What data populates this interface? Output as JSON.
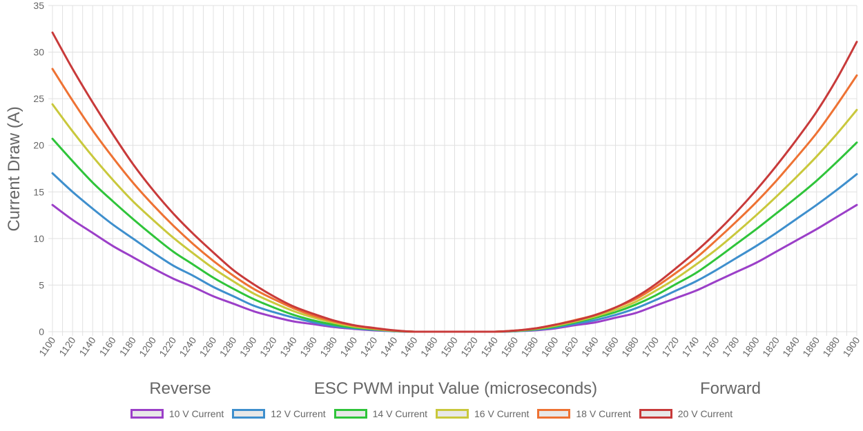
{
  "chart_data": {
    "type": "line",
    "xlabel": "ESC PWM input Value (microseconds)",
    "ylabel": "Current Draw (A)",
    "annotations": {
      "left": "Reverse",
      "right": "Forward"
    },
    "ylim": [
      0,
      35
    ],
    "yticks": [
      0,
      5,
      10,
      15,
      20,
      25,
      30,
      35
    ],
    "xlim": [
      1100,
      1900
    ],
    "xticks": [
      1100,
      1120,
      1140,
      1160,
      1180,
      1200,
      1220,
      1240,
      1260,
      1280,
      1300,
      1320,
      1340,
      1360,
      1380,
      1400,
      1420,
      1440,
      1460,
      1480,
      1500,
      1520,
      1540,
      1560,
      1580,
      1600,
      1620,
      1640,
      1660,
      1680,
      1700,
      1720,
      1740,
      1760,
      1780,
      1800,
      1820,
      1840,
      1860,
      1880,
      1900
    ],
    "grid": true,
    "legend_position": "bottom",
    "x": [
      1100,
      1120,
      1140,
      1160,
      1180,
      1200,
      1220,
      1240,
      1260,
      1280,
      1300,
      1320,
      1340,
      1360,
      1380,
      1400,
      1420,
      1440,
      1460,
      1480,
      1500,
      1520,
      1540,
      1560,
      1580,
      1600,
      1620,
      1640,
      1660,
      1680,
      1700,
      1720,
      1740,
      1760,
      1780,
      1800,
      1820,
      1840,
      1860,
      1880,
      1900
    ],
    "series": [
      {
        "name": "10 V Current",
        "color": "#9b3fc8",
        "values": [
          13.6,
          12.0,
          10.6,
          9.2,
          8.0,
          6.8,
          5.7,
          4.8,
          3.8,
          3.0,
          2.2,
          1.6,
          1.1,
          0.8,
          0.5,
          0.3,
          0.15,
          0.05,
          0.0,
          0.0,
          0.0,
          0.0,
          0.0,
          0.05,
          0.15,
          0.35,
          0.7,
          1.0,
          1.5,
          2.0,
          2.8,
          3.6,
          4.4,
          5.4,
          6.4,
          7.4,
          8.6,
          9.8,
          11.0,
          12.3,
          13.6
        ]
      },
      {
        "name": "12 V Current",
        "color": "#3e8fcd",
        "values": [
          17.0,
          15.0,
          13.2,
          11.5,
          10.0,
          8.5,
          7.1,
          6.0,
          4.8,
          3.8,
          2.8,
          2.1,
          1.5,
          1.0,
          0.6,
          0.35,
          0.2,
          0.05,
          0.0,
          0.0,
          0.0,
          0.0,
          0.0,
          0.05,
          0.2,
          0.45,
          0.85,
          1.25,
          1.8,
          2.5,
          3.4,
          4.4,
          5.4,
          6.6,
          7.9,
          9.2,
          10.6,
          12.1,
          13.6,
          15.2,
          16.9
        ]
      },
      {
        "name": "14 V Current",
        "color": "#2fc43a",
        "values": [
          20.7,
          18.3,
          16.0,
          14.0,
          12.1,
          10.3,
          8.6,
          7.2,
          5.8,
          4.6,
          3.5,
          2.6,
          1.8,
          1.2,
          0.75,
          0.45,
          0.25,
          0.08,
          0.0,
          0.0,
          0.0,
          0.0,
          0.0,
          0.08,
          0.25,
          0.55,
          1.0,
          1.5,
          2.1,
          2.9,
          3.9,
          5.1,
          6.3,
          7.8,
          9.4,
          11.0,
          12.7,
          14.4,
          16.2,
          18.2,
          20.3
        ]
      },
      {
        "name": "16 V Current",
        "color": "#c9c83c",
        "values": [
          24.4,
          21.5,
          18.8,
          16.3,
          14.0,
          12.0,
          10.1,
          8.4,
          6.8,
          5.4,
          4.1,
          3.1,
          2.2,
          1.5,
          0.95,
          0.55,
          0.3,
          0.1,
          0.0,
          0.0,
          0.0,
          0.0,
          0.0,
          0.1,
          0.3,
          0.65,
          1.1,
          1.65,
          2.35,
          3.2,
          4.4,
          5.7,
          7.2,
          8.8,
          10.6,
          12.5,
          14.5,
          16.6,
          18.8,
          21.2,
          23.8
        ]
      },
      {
        "name": "18 V Current",
        "color": "#ee7233",
        "values": [
          28.2,
          24.8,
          21.6,
          18.7,
          16.0,
          13.6,
          11.4,
          9.4,
          7.6,
          6.0,
          4.6,
          3.5,
          2.5,
          1.7,
          1.1,
          0.65,
          0.35,
          0.12,
          0.0,
          0.0,
          0.0,
          0.0,
          0.0,
          0.12,
          0.35,
          0.75,
          1.25,
          1.8,
          2.6,
          3.5,
          4.8,
          6.3,
          7.9,
          9.8,
          11.8,
          13.9,
          16.2,
          18.7,
          21.3,
          24.3,
          27.5
        ]
      },
      {
        "name": "20 V Current",
        "color": "#c83a3a",
        "values": [
          32.1,
          28.2,
          24.6,
          21.2,
          18.0,
          15.2,
          12.7,
          10.5,
          8.5,
          6.6,
          5.1,
          3.8,
          2.7,
          1.9,
          1.2,
          0.7,
          0.4,
          0.15,
          0.0,
          0.0,
          0.0,
          0.0,
          0.0,
          0.12,
          0.35,
          0.75,
          1.2,
          1.8,
          2.6,
          3.7,
          5.1,
          6.8,
          8.6,
          10.6,
          12.8,
          15.2,
          17.8,
          20.6,
          23.6,
          27.1,
          31.1
        ]
      }
    ]
  }
}
